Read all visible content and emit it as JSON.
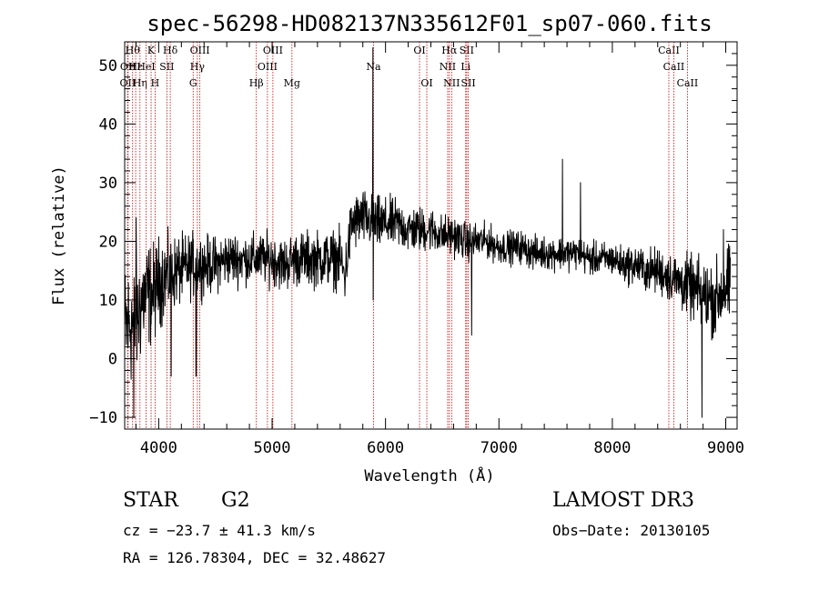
{
  "chart_data": {
    "type": "line",
    "title": "spec-56298-HD082137N335612F01_sp07-060.fits",
    "xlabel": "Wavelength (Å)",
    "ylabel": "Flux (relative)",
    "xlim": [
      3700,
      9100
    ],
    "ylim": [
      -12,
      54
    ],
    "xticks": [
      {
        "value": 4000,
        "label": "4000"
      },
      {
        "value": 5000,
        "label": "5000"
      },
      {
        "value": 6000,
        "label": "6000"
      },
      {
        "value": 7000,
        "label": "7000"
      },
      {
        "value": 8000,
        "label": "8000"
      },
      {
        "value": 9000,
        "label": "9000"
      }
    ],
    "yticks": [
      {
        "value": -10,
        "label": "−10"
      },
      {
        "value": 0,
        "label": "0"
      },
      {
        "value": 10,
        "label": "10"
      },
      {
        "value": 20,
        "label": "20"
      },
      {
        "value": 30,
        "label": "30"
      },
      {
        "value": 40,
        "label": "40"
      },
      {
        "value": 50,
        "label": "50"
      }
    ],
    "grid": false,
    "series": [
      {
        "name": "spectrum",
        "color": "#000000",
        "envelope": [
          [
            3700,
            5
          ],
          [
            3750,
            6
          ],
          [
            3800,
            6
          ],
          [
            3850,
            10
          ],
          [
            3900,
            11
          ],
          [
            3950,
            11
          ],
          [
            4000,
            13
          ],
          [
            4050,
            14
          ],
          [
            4100,
            14
          ],
          [
            4150,
            15
          ],
          [
            4200,
            15
          ],
          [
            4300,
            16
          ],
          [
            4400,
            16
          ],
          [
            4500,
            16
          ],
          [
            4600,
            17
          ],
          [
            4700,
            17
          ],
          [
            4800,
            17
          ],
          [
            4900,
            17
          ],
          [
            5000,
            17
          ],
          [
            5100,
            16
          ],
          [
            5200,
            17
          ],
          [
            5300,
            17
          ],
          [
            5400,
            17
          ],
          [
            5500,
            17
          ],
          [
            5600,
            17
          ],
          [
            5640,
            14
          ],
          [
            5680,
            20
          ],
          [
            5700,
            23
          ],
          [
            5800,
            24
          ],
          [
            5900,
            23
          ],
          [
            6000,
            23
          ],
          [
            6100,
            23
          ],
          [
            6200,
            22
          ],
          [
            6300,
            22
          ],
          [
            6400,
            22
          ],
          [
            6500,
            21
          ],
          [
            6600,
            21
          ],
          [
            6700,
            20
          ],
          [
            6800,
            20
          ],
          [
            6900,
            20
          ],
          [
            7000,
            19
          ],
          [
            7100,
            19
          ],
          [
            7200,
            19
          ],
          [
            7300,
            18
          ],
          [
            7400,
            18
          ],
          [
            7500,
            18
          ],
          [
            7600,
            18
          ],
          [
            7700,
            18
          ],
          [
            7800,
            17
          ],
          [
            7900,
            17
          ],
          [
            8000,
            17
          ],
          [
            8100,
            16
          ],
          [
            8200,
            16
          ],
          [
            8300,
            15
          ],
          [
            8400,
            15
          ],
          [
            8500,
            14
          ],
          [
            8600,
            13
          ],
          [
            8700,
            12
          ],
          [
            8800,
            11
          ],
          [
            8900,
            10
          ],
          [
            9000,
            12
          ]
        ],
        "noise_bands": [
          [
            3700,
            8.0
          ],
          [
            3900,
            6.5
          ],
          [
            4100,
            4.5
          ],
          [
            4400,
            3.5
          ],
          [
            4800,
            3.0
          ],
          [
            5600,
            3.5
          ],
          [
            5700,
            3.5
          ],
          [
            6500,
            2.5
          ],
          [
            7000,
            2.0
          ],
          [
            8000,
            2.0
          ],
          [
            8500,
            3.0
          ],
          [
            9000,
            5.0
          ]
        ],
        "features": [
          [
            5890,
            53
          ],
          [
            5892,
            10
          ],
          [
            3780,
            -10
          ],
          [
            3800,
            24
          ],
          [
            4330,
            -3
          ],
          [
            6760,
            4
          ],
          [
            7560,
            34
          ],
          [
            7720,
            30
          ],
          [
            8790,
            -10
          ],
          [
            8980,
            22
          ],
          [
            4110,
            -3
          ]
        ]
      }
    ],
    "lines": [
      {
        "wavelength": 3727,
        "row": 2,
        "label": "OII"
      },
      {
        "wavelength": 3730,
        "row": 1,
        "label": "OII"
      },
      {
        "wavelength": 3770,
        "row": 0,
        "label": "Hθ"
      },
      {
        "wavelength": 3797,
        "row": 1,
        "label": "Hε"
      },
      {
        "wavelength": 3835,
        "row": 2,
        "label": "Hη"
      },
      {
        "wavelength": 3889,
        "row": 1,
        "label": "HeI"
      },
      {
        "wavelength": 3933,
        "row": 0,
        "label": "K"
      },
      {
        "wavelength": 3968,
        "row": 2,
        "label": "H"
      },
      {
        "wavelength": 4072,
        "row": 1,
        "label": "SII"
      },
      {
        "wavelength": 4102,
        "row": 0,
        "label": "Hδ"
      },
      {
        "wavelength": 4304,
        "row": 2,
        "label": "G"
      },
      {
        "wavelength": 4341,
        "row": 1,
        "label": "Hγ"
      },
      {
        "wavelength": 4363,
        "row": 0,
        "label": "OIII"
      },
      {
        "wavelength": 4861,
        "row": 2,
        "label": "Hβ"
      },
      {
        "wavelength": 4959,
        "row": 1,
        "label": "OIII"
      },
      {
        "wavelength": 5007,
        "row": 0,
        "label": "OIII"
      },
      {
        "wavelength": 5175,
        "row": 2,
        "label": "Mg"
      },
      {
        "wavelength": 5894,
        "row": 1,
        "label": "Na"
      },
      {
        "wavelength": 6300,
        "row": 0,
        "label": "OI"
      },
      {
        "wavelength": 6364,
        "row": 2,
        "label": "OI"
      },
      {
        "wavelength": 6548,
        "row": 1,
        "label": "NII"
      },
      {
        "wavelength": 6563,
        "row": 0,
        "label": "Hα"
      },
      {
        "wavelength": 6583,
        "row": 2,
        "label": "NII"
      },
      {
        "wavelength": 6707,
        "row": 1,
        "label": "Li"
      },
      {
        "wavelength": 6716,
        "row": 0,
        "label": "SII"
      },
      {
        "wavelength": 6730,
        "row": 2,
        "label": "SII"
      },
      {
        "wavelength": 8498,
        "row": 0,
        "label": "CaII"
      },
      {
        "wavelength": 8542,
        "row": 1,
        "label": "CaII"
      },
      {
        "wavelength": 8662,
        "row": 2,
        "label": "CaII"
      }
    ],
    "line_color": "#cc0000"
  },
  "info": {
    "object_type": "STAR",
    "subclass": "G2",
    "survey": "LAMOST DR3",
    "redshift": "cz = −23.7 ± 41.3 km/s",
    "obs_date": "Obs−Date: 20130105",
    "coordinates": "RA = 126.78304, DEC =  32.48627"
  }
}
